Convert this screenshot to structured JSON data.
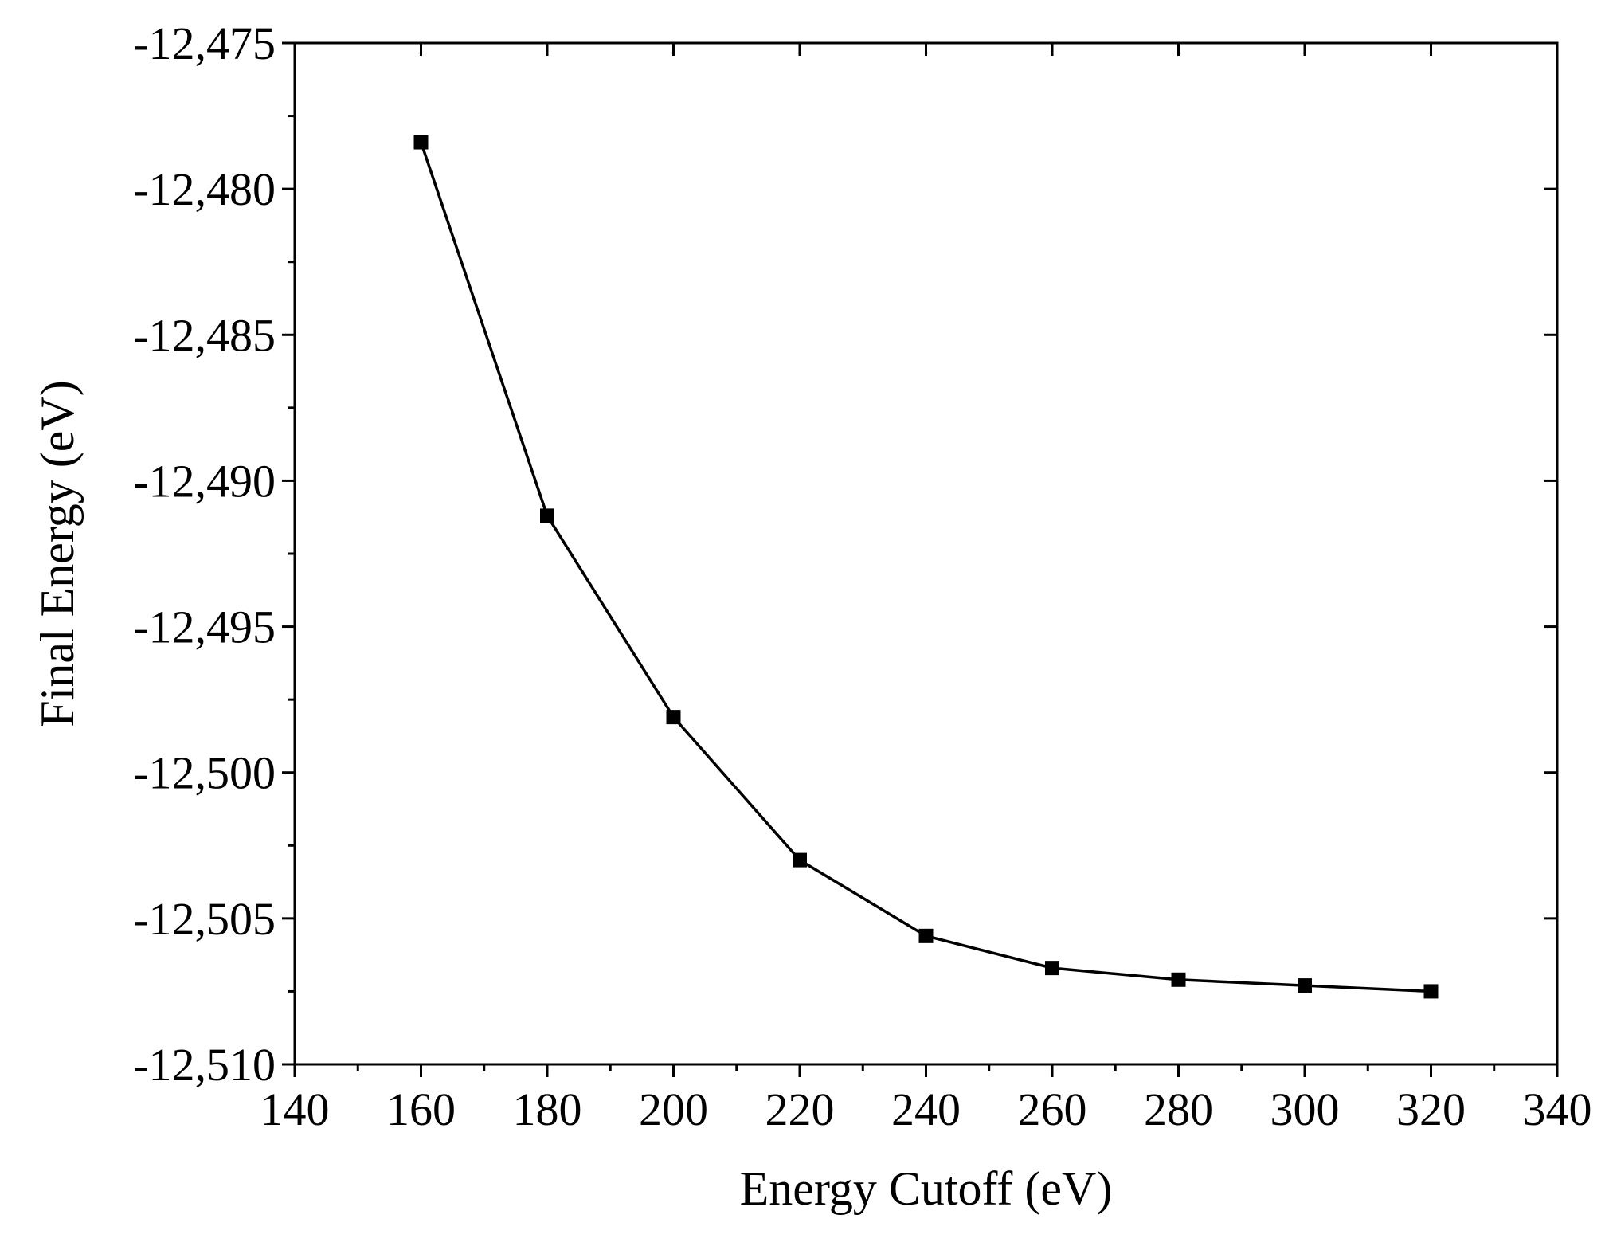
{
  "chart_data": {
    "type": "line",
    "xlabel": "Energy Cutoff (eV)",
    "ylabel": "Final Energy (eV)",
    "xlim": [
      140,
      340
    ],
    "ylim": [
      -12510,
      -12475
    ],
    "x_ticks": [
      140,
      160,
      180,
      200,
      220,
      240,
      260,
      280,
      300,
      320,
      340
    ],
    "x_tick_labels": [
      "140",
      "160",
      "180",
      "200",
      "220",
      "240",
      "260",
      "280",
      "300",
      "320",
      "340"
    ],
    "y_ticks": [
      -12475,
      -12480,
      -12485,
      -12490,
      -12495,
      -12500,
      -12505,
      -12510
    ],
    "y_tick_labels": [
      "-12,475",
      "-12,480",
      "-12,485",
      "-12,490",
      "-12,495",
      "-12,500",
      "-12,505",
      "-12,510"
    ],
    "grid": false,
    "marker": "square",
    "series": [
      {
        "x": [
          160,
          180,
          200,
          220,
          240,
          260,
          280,
          300,
          320
        ],
        "y": [
          -12478.4,
          -12491.2,
          -12498.1,
          -12503.0,
          -12505.6,
          -12506.7,
          -12507.1,
          -12507.3,
          -12507.5
        ]
      }
    ],
    "colors": {
      "line": "#000000",
      "marker": "#000000",
      "axes": "#000000"
    }
  }
}
